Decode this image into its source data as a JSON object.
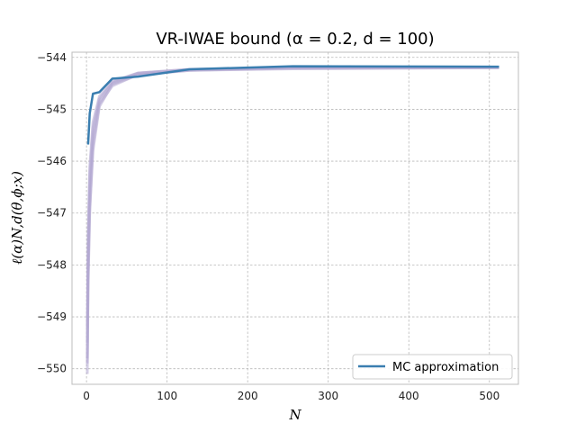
{
  "chart_data": {
    "type": "line",
    "title": "VR-IWAE bound (α = 0.2, d = 100)",
    "xlabel": "N",
    "ylabel": "ℓ(α)N,d(θ,ϕ;x)",
    "xlim": [
      -18,
      536
    ],
    "ylim": [
      -550.3,
      -543.9
    ],
    "x_ticks": [
      0,
      100,
      200,
      300,
      400,
      500
    ],
    "y_ticks": [
      -544,
      -545,
      -546,
      -547,
      -548,
      -549,
      -550
    ],
    "x_tick_labels": [
      "0",
      "100",
      "200",
      "300",
      "400",
      "500"
    ],
    "y_tick_labels": [
      "−544",
      "−545",
      "−546",
      "−547",
      "−548",
      "−549",
      "−550"
    ],
    "grid": true,
    "legend_position": "lower-right",
    "colors": {
      "mc_line": "#3a7eb0",
      "samples": "#b3a8d2",
      "grid": "#b8b8b8",
      "frame": "#bcbcbc"
    },
    "series": [
      {
        "name": "MC approximation",
        "x": [
          2,
          4,
          8,
          16,
          32,
          64,
          128,
          256,
          512
        ],
        "y": [
          -545.68,
          -545.08,
          -544.7,
          -544.67,
          -544.41,
          -544.37,
          -544.23,
          -544.17,
          -544.18
        ]
      }
    ],
    "sample_curves": {
      "x": [
        1,
        2,
        4,
        8,
        16,
        32,
        64,
        128,
        256,
        512
      ],
      "curves": [
        [
          -550.1,
          -548.4,
          -547.0,
          -545.7,
          -544.9,
          -544.55,
          -544.33,
          -544.25,
          -544.21,
          -544.2
        ],
        [
          -549.8,
          -548.0,
          -546.6,
          -545.5,
          -544.85,
          -544.5,
          -544.31,
          -544.24,
          -544.2,
          -544.19
        ],
        [
          -549.5,
          -547.7,
          -546.3,
          -545.35,
          -544.8,
          -544.48,
          -544.3,
          -544.23,
          -544.2,
          -544.19
        ],
        [
          -549.9,
          -548.2,
          -546.9,
          -545.8,
          -544.95,
          -544.52,
          -544.34,
          -544.25,
          -544.22,
          -544.2
        ],
        [
          -549.2,
          -547.4,
          -546.1,
          -545.25,
          -544.75,
          -544.46,
          -544.3,
          -544.23,
          -544.2,
          -544.19
        ]
      ]
    }
  }
}
